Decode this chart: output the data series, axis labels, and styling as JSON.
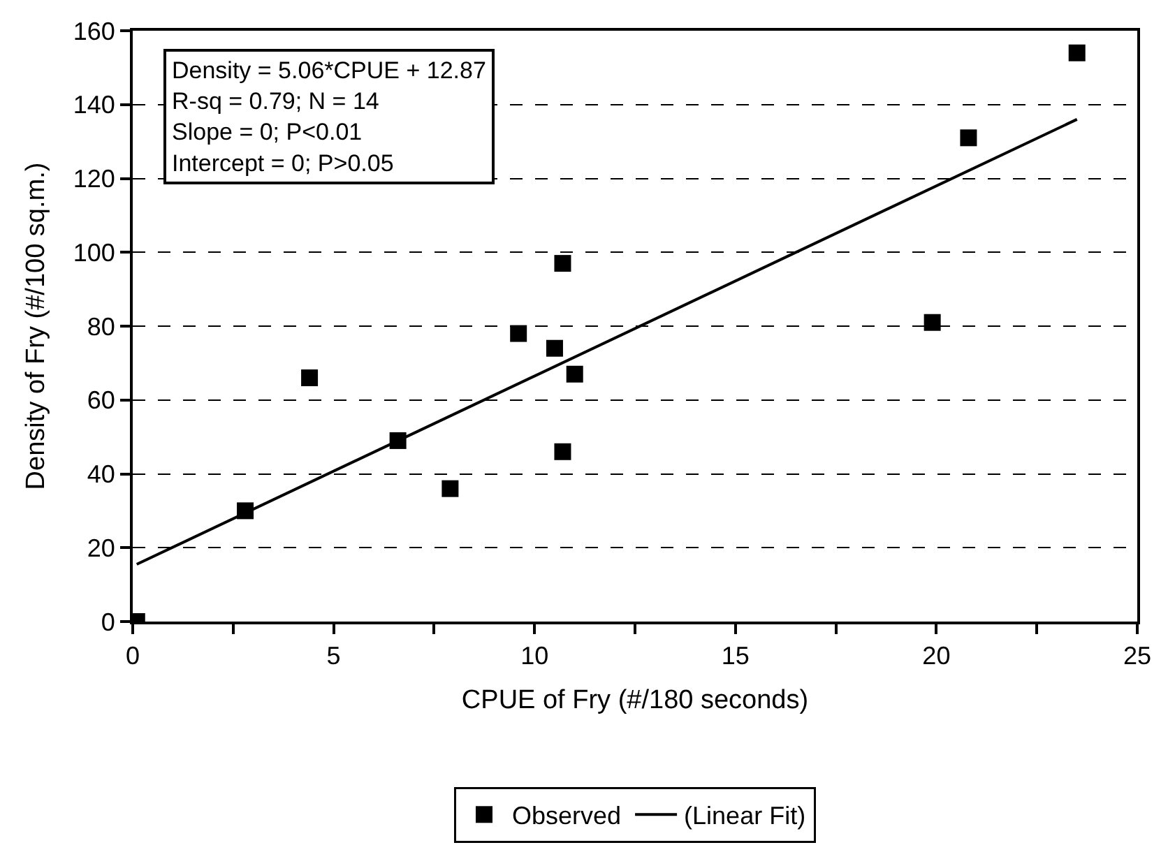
{
  "chart_data": {
    "type": "scatter",
    "xlabel": "CPUE of Fry (#/180 seconds)",
    "ylabel": "Density of Fry (#/100 sq.m.)",
    "annotations": [
      "Density = 5.06*CPUE + 12.87",
      "R-sq = 0.79; N = 14",
      "Slope = 0; P<0.01",
      "Intercept = 0; P>0.05"
    ],
    "x": [
      0.1,
      2.8,
      4.4,
      6.6,
      7.9,
      9.6,
      10.5,
      10.7,
      11.0,
      10.7,
      19.9,
      20.8,
      23.5
    ],
    "series": [
      {
        "name": "Observed",
        "marker": "square",
        "color": "#000000",
        "values": [
          0,
          30,
          66,
          49,
          36,
          78,
          74,
          97,
          67,
          46,
          81,
          131,
          154
        ]
      },
      {
        "name": "(Linear Fit)",
        "type": "line",
        "marker": "none",
        "color": "#000000",
        "x": [
          0.1,
          23.5
        ],
        "values": [
          15.5,
          136
        ]
      }
    ],
    "xlim": [
      0,
      25
    ],
    "xticks": [
      0,
      {
        "value": 2.5,
        "label": null
      },
      5,
      {
        "value": 7.5,
        "label": null
      },
      10,
      {
        "value": 12.5,
        "label": null
      },
      15,
      {
        "value": 17.5,
        "label": null
      },
      20,
      {
        "value": 22.5,
        "label": null
      },
      25
    ],
    "ylim": [
      0,
      160
    ],
    "yticks": [
      0,
      20,
      40,
      60,
      80,
      100,
      120,
      140,
      160
    ],
    "grid": "y",
    "legend": "bottom"
  }
}
